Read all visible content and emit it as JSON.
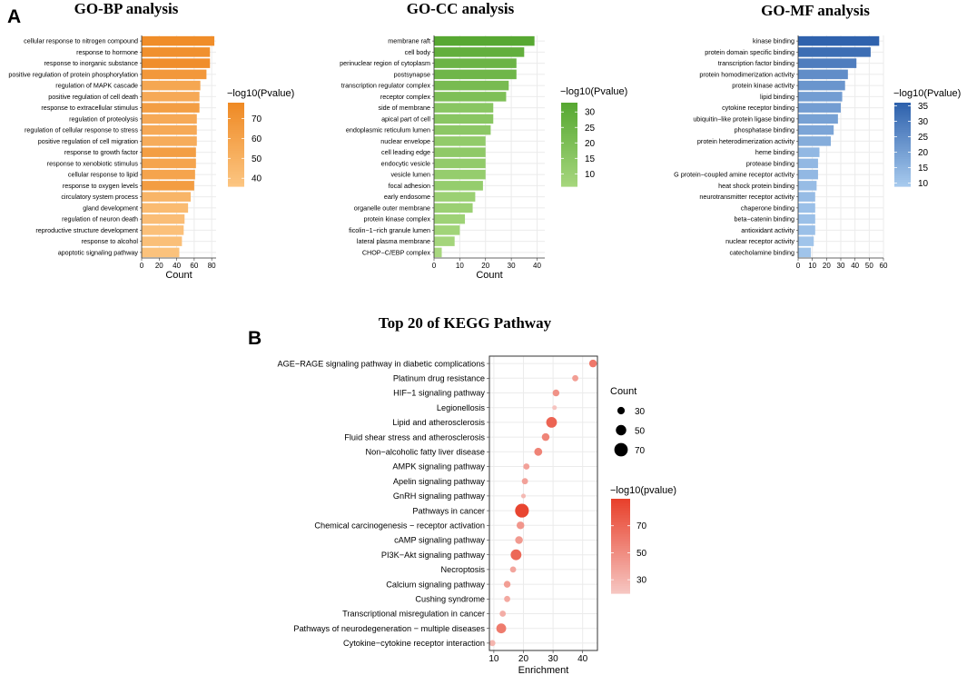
{
  "panel_labels": {
    "a": "A",
    "b": "B"
  },
  "chart_data": [
    {
      "id": "go_bp",
      "type": "bar",
      "orientation": "horizontal",
      "title": "GO-BP analysis",
      "xlabel": "Count",
      "ylabel": "",
      "xlim": [
        0,
        85
      ],
      "xticks": [
        0,
        20,
        40,
        60,
        80
      ],
      "grid": true,
      "categories": [
        "cellular response to nitrogen compound",
        "response to hormone",
        "response to inorganic substance",
        "positive regulation of protein phosphorylation",
        "regulation of MAPK cascade",
        "positive regulation of cell death",
        "response to extracellular stimulus",
        "regulation of proteolysis",
        "regulation of cellular response to stress",
        "positive regulation of cell migration",
        "response to growth factor",
        "response to xenobiotic stimulus",
        "cellular response to lipid",
        "response to oxygen levels",
        "circulatory system process",
        "gland development",
        "regulation of neuron death",
        "reproductive structure development",
        "response to alcohol",
        "apoptotic signaling pathway"
      ],
      "values": [
        83,
        78,
        78,
        74,
        67,
        66,
        66,
        63,
        63,
        63,
        62,
        62,
        61,
        60,
        56,
        53,
        49,
        48,
        46,
        43
      ],
      "color_values": [
        76,
        74,
        75,
        68,
        58,
        56,
        64,
        56,
        56,
        54,
        64,
        60,
        60,
        65,
        48,
        44,
        42,
        40,
        41,
        39
      ],
      "legend": {
        "title": "−log10(Pvalue)",
        "ticks": [
          70,
          60,
          50,
          40
        ],
        "range": [
          36,
          78
        ],
        "color_low": "#fcc683",
        "color_high": "#ef8a25"
      }
    },
    {
      "id": "go_cc",
      "type": "bar",
      "orientation": "horizontal",
      "title": "GO-CC analysis",
      "xlabel": "Count",
      "ylabel": "",
      "xlim": [
        0,
        43
      ],
      "xticks": [
        0,
        10,
        20,
        30,
        40
      ],
      "grid": true,
      "categories": [
        "membrane raft",
        "cell body",
        "perinuclear region of cytoplasm",
        "postsynapse",
        "transcription regulator complex",
        "receptor complex",
        "side of membrane",
        "apical part of cell",
        "endoplasmic reticulum lumen",
        "nuclear envelope",
        "cell leading edge",
        "endocytic vesicle",
        "vesicle lumen",
        "focal adhesion",
        "early endosome",
        "organelle outer membrane",
        "protein kinase complex",
        "ficolin−1−rich granule lumen",
        "lateral plasma membrane",
        "CHOP−C/EBP complex"
      ],
      "values": [
        39,
        35,
        32,
        32,
        29,
        28,
        23,
        23,
        22,
        20,
        20,
        20,
        20,
        19,
        16,
        15,
        12,
        10,
        8,
        3
      ],
      "color_values": [
        33,
        29,
        26,
        25,
        22,
        20,
        16,
        16,
        15,
        13,
        14,
        13,
        12,
        12,
        10,
        10,
        9,
        8,
        7,
        6
      ],
      "legend": {
        "title": "−log10(Pvalue)",
        "ticks": [
          30,
          25,
          20,
          15,
          10
        ],
        "range": [
          6,
          33
        ],
        "color_low": "#a7d77e",
        "color_high": "#57a832"
      }
    },
    {
      "id": "go_mf",
      "type": "bar",
      "orientation": "horizontal",
      "title": "GO-MF analysis",
      "xlabel": "",
      "ylabel": "",
      "xlim": [
        0,
        60
      ],
      "xticks": [
        0,
        10,
        20,
        30,
        40,
        50,
        60
      ],
      "grid": true,
      "categories": [
        "kinase binding",
        "protein domain specific binding",
        "transcription factor binding",
        "protein homodimerization activity",
        "protein kinase activity",
        "lipid binding",
        "cytokine receptor binding",
        "ubiquitin−like protein ligase binding",
        "phosphatase binding",
        "protein heterodimerization activity",
        "heme binding",
        "protease binding",
        "G protein−coupled amine receptor activity",
        "heat shock protein binding",
        "neurotransmitter receptor activity",
        "chaperone binding",
        "beta−catenin binding",
        "antioxidant activity",
        "nuclear receptor activity",
        "catecholamine binding"
      ],
      "values": [
        57,
        51,
        41,
        35,
        33,
        31,
        30,
        28,
        25,
        23,
        15,
        14,
        14,
        13,
        12,
        12,
        12,
        12,
        11,
        9
      ],
      "color_values": [
        36,
        33,
        29,
        25,
        23,
        21,
        21,
        20,
        19,
        17,
        14,
        14,
        14,
        13,
        13,
        12,
        12,
        12,
        11,
        11
      ],
      "legend": {
        "title": "−log10(Pvalue)",
        "ticks": [
          35,
          30,
          25,
          20,
          15,
          10
        ],
        "range": [
          9,
          36
        ],
        "color_low": "#a9ccef",
        "color_high": "#2f62ad"
      }
    },
    {
      "id": "kegg",
      "type": "scatter",
      "title": "Top 20 of KEGG Pathway",
      "xlabel": "Enrichment",
      "ylabel": "",
      "xlim": [
        8.5,
        45
      ],
      "xticks": [
        10,
        20,
        30,
        40
      ],
      "grid": true,
      "categories": [
        "AGE−RAGE signaling pathway in diabetic complications",
        "Platinum drug resistance",
        "HIF−1 signaling pathway",
        "Legionellosis",
        "Lipid and atherosclerosis",
        "Fluid shear stress and atherosclerosis",
        "Non−alcoholic fatty liver disease",
        "AMPK signaling pathway",
        "Apelin signaling pathway",
        "GnRH signaling pathway",
        "Pathways in cancer",
        "Chemical carcinogenesis − receptor activation",
        "cAMP signaling pathway",
        "PI3K−Akt signaling pathway",
        "Necroptosis",
        "Calcium signaling pathway",
        "Cushing syndrome",
        "Transcriptional misregulation in cancer",
        "Pathways of neurodegeneration − multiple diseases",
        "Cytokine−cytokine receptor interaction"
      ],
      "enrichment": [
        43.5,
        37.5,
        31,
        30.5,
        29.5,
        27.5,
        25,
        21,
        20.5,
        20,
        19.5,
        19,
        18.5,
        17.5,
        16.5,
        14.5,
        14.5,
        13,
        12.5,
        9.5
      ],
      "count": [
        32,
        22,
        26,
        12,
        52,
        32,
        34,
        22,
        22,
        12,
        72,
        32,
        32,
        52,
        22,
        26,
        22,
        22,
        46,
        22
      ],
      "pvalue_log": [
        62,
        42,
        48,
        22,
        72,
        55,
        56,
        40,
        40,
        28,
        88,
        46,
        44,
        70,
        38,
        42,
        36,
        34,
        60,
        30
      ],
      "size_legend": {
        "title": "Count",
        "values": [
          30,
          50,
          70
        ]
      },
      "color_legend": {
        "title": "−log10(pvalue)",
        "ticks": [
          70,
          50,
          30
        ],
        "range": [
          20,
          90
        ],
        "color_low": "#f6c8c4",
        "color_high": "#e8412c"
      }
    }
  ]
}
